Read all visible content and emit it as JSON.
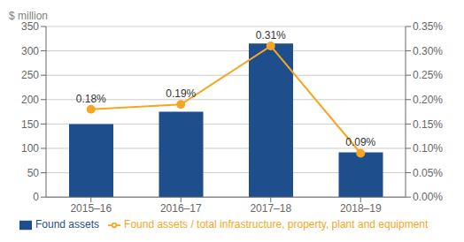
{
  "chart_data": {
    "type": "bar",
    "categories": [
      "2015–16",
      "2016–17",
      "2017–18",
      "2018–19"
    ],
    "series": [
      {
        "name": "Found assets",
        "type": "bar",
        "color": "#1F4E8C",
        "values": [
          150,
          175,
          315,
          92
        ]
      },
      {
        "name": "Found assets / total infrastructure, property, plant and equipment",
        "type": "line",
        "axis": "y2",
        "color": "#F5A623",
        "marker": "circle",
        "values": [
          0.0018,
          0.0019,
          0.0031,
          0.0009
        ],
        "value_labels": [
          "0.18%",
          "0.19%",
          "0.31%",
          "0.09%"
        ],
        "data_labels": true
      }
    ],
    "ylabel": "$ million",
    "ylim": [
      0,
      350
    ],
    "yticks": [
      0,
      50,
      100,
      150,
      200,
      250,
      300,
      350
    ],
    "y2lim": [
      0,
      0.0035
    ],
    "y2ticks": [
      {
        "value": 0.0,
        "label": "0.00%"
      },
      {
        "value": 0.0005,
        "label": "0.05%"
      },
      {
        "value": 0.001,
        "label": "0.10%"
      },
      {
        "value": 0.0015,
        "label": "0.15%"
      },
      {
        "value": 0.002,
        "label": "0.20%"
      },
      {
        "value": 0.0025,
        "label": "0.25%"
      },
      {
        "value": 0.003,
        "label": "0.30%"
      },
      {
        "value": 0.0035,
        "label": "0.35%"
      }
    ],
    "grid": true,
    "legend": "bottom"
  }
}
